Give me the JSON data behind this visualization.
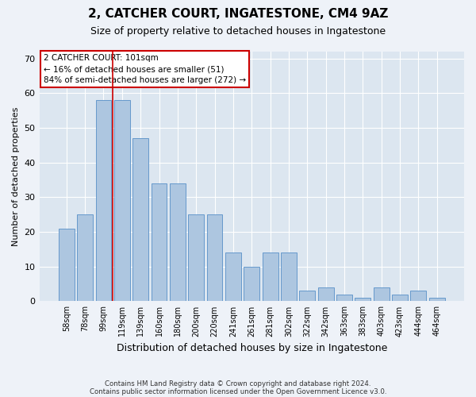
{
  "title1": "2, CATCHER COURT, INGATESTONE, CM4 9AZ",
  "title2": "Size of property relative to detached houses in Ingatestone",
  "xlabel": "Distribution of detached houses by size in Ingatestone",
  "ylabel": "Number of detached properties",
  "categories": [
    "58sqm",
    "78sqm",
    "99sqm",
    "119sqm",
    "139sqm",
    "160sqm",
    "180sqm",
    "200sqm",
    "220sqm",
    "241sqm",
    "261sqm",
    "281sqm",
    "302sqm",
    "322sqm",
    "342sqm",
    "363sqm",
    "383sqm",
    "403sqm",
    "423sqm",
    "444sqm",
    "464sqm"
  ],
  "values": [
    21,
    25,
    58,
    58,
    47,
    34,
    34,
    25,
    25,
    14,
    10,
    14,
    14,
    3,
    4,
    2,
    1,
    4,
    2,
    3,
    1
  ],
  "bar_color": "#adc6e0",
  "bar_edge_color": "#6699cc",
  "marker_line_color": "#cc0000",
  "annotation_box_color": "#ffffff",
  "annotation_box_edge": "#cc0000",
  "marker_label": "2 CATCHER COURT: 101sqm",
  "smaller_text": "← 16% of detached houses are smaller (51)",
  "larger_text": "84% of semi-detached houses are larger (272) →",
  "ylim": [
    0,
    72
  ],
  "yticks": [
    0,
    10,
    20,
    30,
    40,
    50,
    60,
    70
  ],
  "footer1": "Contains HM Land Registry data © Crown copyright and database right 2024.",
  "footer2": "Contains public sector information licensed under the Open Government Licence v3.0.",
  "bg_color": "#eef2f8",
  "plot_bg_color": "#dce6f0"
}
